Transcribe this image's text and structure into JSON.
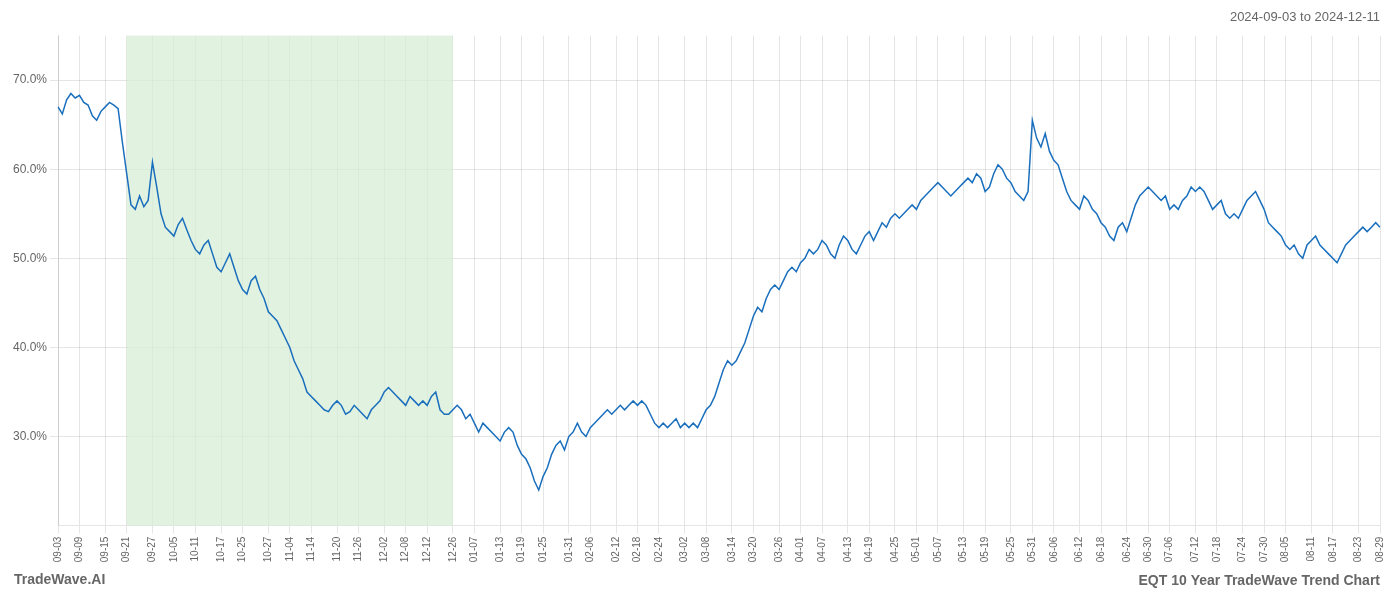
{
  "chart_data": {
    "type": "line",
    "title": "EQT 10 Year TradeWave Trend Chart",
    "subtitle": "2024-09-03 to 2024-12-11",
    "annotations": [
      "TradeWave.AI"
    ],
    "categories": [
      "09-03",
      null,
      null,
      null,
      null,
      "09-09",
      null,
      null,
      null,
      null,
      null,
      "09-15",
      null,
      null,
      null,
      null,
      "09-21",
      null,
      null,
      null,
      null,
      null,
      "09-27",
      null,
      null,
      null,
      null,
      "10-05",
      null,
      null,
      null,
      null,
      "10-11",
      null,
      null,
      null,
      null,
      null,
      "10-17",
      null,
      null,
      null,
      null,
      "10-25",
      null,
      null,
      null,
      null,
      null,
      "10-27",
      null,
      null,
      null,
      null,
      "11-04",
      null,
      null,
      null,
      null,
      "11-14",
      null,
      null,
      null,
      null,
      null,
      "11-20",
      null,
      null,
      null,
      null,
      "11-26",
      null,
      null,
      null,
      null,
      null,
      "12-02",
      null,
      null,
      null,
      null,
      "12-08",
      null,
      null,
      null,
      null,
      "12-12",
      null,
      null,
      null,
      null,
      null,
      "12-26",
      null,
      null,
      null,
      null,
      "01-07",
      null,
      null,
      null,
      null,
      null,
      "01-13",
      null,
      null,
      null,
      null,
      "01-19",
      null,
      null,
      null,
      null,
      "01-25",
      null,
      null,
      null,
      null,
      null,
      "01-31",
      null,
      null,
      null,
      null,
      "02-06",
      null,
      null,
      null,
      null,
      null,
      "02-12",
      null,
      null,
      null,
      null,
      "02-18",
      null,
      null,
      null,
      null,
      "02-24",
      null,
      null,
      null,
      null,
      null,
      "03-02",
      null,
      null,
      null,
      null,
      "03-08",
      null,
      null,
      null,
      null,
      null,
      "03-14",
      null,
      null,
      null,
      null,
      "03-20",
      null,
      null,
      null,
      null,
      null,
      "03-26",
      null,
      null,
      null,
      null,
      "04-01",
      null,
      null,
      null,
      null,
      "04-07",
      null,
      null,
      null,
      null,
      null,
      "04-13",
      null,
      null,
      null,
      null,
      "04-19",
      null,
      null,
      null,
      null,
      null,
      "04-25",
      null,
      null,
      null,
      null,
      "05-01",
      null,
      null,
      null,
      null,
      "05-07",
      null,
      null,
      null,
      null,
      null,
      "05-13",
      null,
      null,
      null,
      null,
      "05-19",
      null,
      null,
      null,
      null,
      null,
      "05-25",
      null,
      null,
      null,
      null,
      "05-31",
      null,
      null,
      null,
      null,
      "06-06",
      null,
      null,
      null,
      null,
      null,
      "06-12",
      null,
      null,
      null,
      null,
      "06-18",
      null,
      null,
      null,
      null,
      null,
      "06-24",
      null,
      null,
      null,
      null,
      "06-30",
      null,
      null,
      null,
      null,
      "07-06",
      null,
      null,
      null,
      null,
      null,
      "07-12",
      null,
      null,
      null,
      null,
      "07-18",
      null,
      null,
      null,
      null,
      null,
      "07-24",
      null,
      null,
      null,
      null,
      "07-30",
      null,
      null,
      null,
      null,
      "08-05",
      null,
      null,
      null,
      null,
      null,
      "08-11",
      null,
      null,
      null,
      null,
      "08-17",
      null,
      null,
      null,
      null,
      null,
      "08-23",
      null,
      null,
      null,
      null,
      "08-29"
    ],
    "values": [
      67.0,
      66.2,
      67.8,
      68.5,
      68.0,
      68.3,
      67.5,
      67.2,
      66.0,
      65.5,
      66.5,
      67.0,
      67.5,
      67.2,
      66.8,
      63.0,
      59.5,
      56.0,
      55.5,
      57.0,
      55.8,
      56.5,
      60.8,
      58.0,
      55.0,
      53.5,
      53.0,
      52.5,
      53.8,
      54.5,
      53.2,
      52.0,
      51.0,
      50.5,
      51.5,
      52.0,
      50.5,
      49.0,
      48.5,
      49.5,
      50.5,
      49.0,
      47.5,
      46.5,
      46.0,
      47.5,
      48.0,
      46.5,
      45.5,
      44.0,
      43.5,
      43.0,
      42.0,
      41.0,
      40.0,
      38.5,
      37.5,
      36.5,
      35.0,
      34.5,
      34.0,
      33.5,
      33.0,
      32.8,
      33.5,
      34.0,
      33.5,
      32.5,
      32.8,
      33.5,
      33.0,
      32.5,
      32.0,
      33.0,
      33.5,
      34.0,
      35.0,
      35.5,
      35.0,
      34.5,
      34.0,
      33.5,
      34.5,
      34.0,
      33.5,
      34.0,
      33.5,
      34.5,
      35.0,
      33.0,
      32.5,
      32.5,
      33.0,
      33.5,
      33.0,
      32.0,
      32.5,
      31.5,
      30.5,
      31.5,
      31.0,
      30.5,
      30.0,
      29.5,
      30.5,
      31.0,
      30.5,
      29.0,
      28.0,
      27.5,
      26.5,
      25.0,
      24.0,
      25.5,
      26.5,
      28.0,
      29.0,
      29.5,
      28.5,
      30.0,
      30.5,
      31.5,
      30.5,
      30.0,
      31.0,
      31.5,
      32.0,
      32.5,
      33.0,
      32.5,
      33.0,
      33.5,
      33.0,
      33.5,
      34.0,
      33.5,
      34.0,
      33.5,
      32.5,
      31.5,
      31.0,
      31.5,
      31.0,
      31.5,
      32.0,
      31.0,
      31.5,
      31.0,
      31.5,
      31.0,
      32.0,
      33.0,
      33.5,
      34.5,
      36.0,
      37.5,
      38.5,
      38.0,
      38.5,
      39.5,
      40.5,
      42.0,
      43.5,
      44.5,
      44.0,
      45.5,
      46.5,
      47.0,
      46.5,
      47.5,
      48.5,
      49.0,
      48.5,
      49.5,
      50.0,
      51.0,
      50.5,
      51.0,
      52.0,
      51.5,
      50.5,
      50.0,
      51.5,
      52.5,
      52.0,
      51.0,
      50.5,
      51.5,
      52.5,
      53.0,
      52.0,
      53.0,
      54.0,
      53.5,
      54.5,
      55.0,
      54.5,
      55.0,
      55.5,
      56.0,
      55.5,
      56.5,
      57.0,
      57.5,
      58.0,
      58.5,
      58.0,
      57.5,
      57.0,
      57.5,
      58.0,
      58.5,
      59.0,
      58.5,
      59.5,
      59.0,
      57.5,
      58.0,
      59.5,
      60.5,
      60.0,
      59.0,
      58.5,
      57.5,
      57.0,
      56.5,
      57.5,
      65.5,
      63.5,
      62.5,
      64.0,
      62.0,
      61.0,
      60.5,
      59.0,
      57.5,
      56.5,
      56.0,
      55.5,
      57.0,
      56.5,
      55.5,
      55.0,
      54.0,
      53.5,
      52.5,
      52.0,
      53.5,
      54.0,
      53.0,
      54.5,
      56.0,
      57.0,
      57.5,
      58.0,
      57.5,
      57.0,
      56.5,
      57.0,
      55.5,
      56.0,
      55.5,
      56.5,
      57.0,
      58.0,
      57.5,
      58.0,
      57.5,
      56.5,
      55.5,
      56.0,
      56.5,
      55.0,
      54.5,
      55.0,
      54.5,
      55.5,
      56.5,
      57.0,
      57.5,
      56.5,
      55.5,
      54.0,
      53.5,
      53.0,
      52.5,
      51.5,
      51.0,
      51.5,
      50.5,
      50.0,
      51.5,
      52.0,
      52.5,
      51.5,
      51.0,
      50.5,
      50.0,
      49.5,
      50.5,
      51.5,
      52.0,
      52.5,
      53.0,
      53.5,
      53.0,
      53.5,
      54.0,
      53.5
    ],
    "color": "#1a6fbd",
    "span": {
      "start": "09-21",
      "end": "12-26",
      "color": "#d4ecd4"
    },
    "ylim": [
      20.0,
      75.0
    ],
    "yticks": [
      {
        "value": 30.0,
        "label": "30.0%"
      },
      {
        "value": 40.0,
        "label": "40.0%"
      },
      {
        "value": 50.0,
        "label": "50.0%"
      },
      {
        "value": 60.0,
        "label": "60.0%"
      },
      {
        "value": 70.0,
        "label": "70.0%"
      }
    ],
    "grid": true
  }
}
